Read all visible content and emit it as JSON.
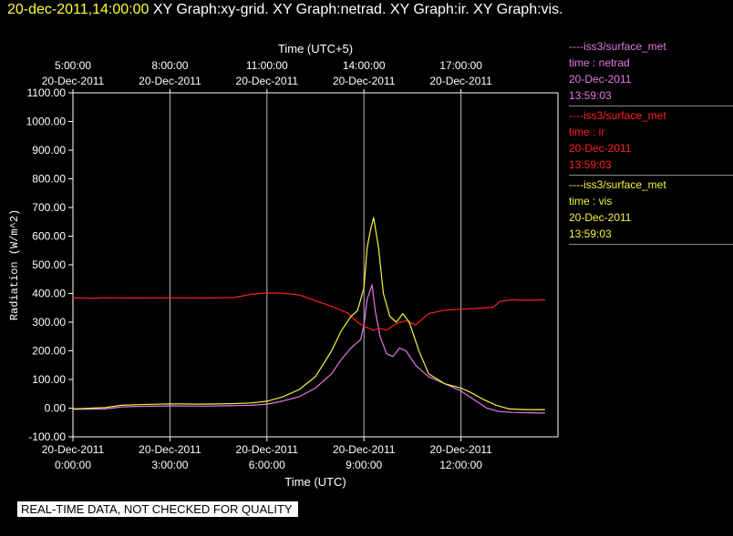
{
  "header": {
    "timestamp": "20-dec-2011,14:00:00",
    "graphs": "XY Graph:xy-grid.  XY Graph:netrad.  XY Graph:ir.  XY Graph:vis."
  },
  "legend": [
    {
      "source": "----iss3/surface_met",
      "label": "time : netrad",
      "date": "20-Dec-2011",
      "time": "13:59:03",
      "color": "#e27ae2"
    },
    {
      "source": "----iss3/surface_met",
      "label": "time : ir",
      "date": "20-Dec-2011",
      "time": "13:59:03",
      "color": "#ff2020"
    },
    {
      "source": "----iss3/surface_met",
      "label": "time : vis",
      "date": "20-Dec-2011",
      "time": "13:59:03",
      "color": "#f5f53a"
    }
  ],
  "disclaimer": "REAL-TIME DATA, NOT CHECKED FOR QUALITY",
  "chart_data": {
    "type": "line",
    "xlabel": "Time (UTC)",
    "x2label": "Time (UTC+5)",
    "ylabel": "Radiation (W/m^2)",
    "xlim": [
      0,
      15
    ],
    "ylim": [
      -100,
      1100
    ],
    "grid": "vertical",
    "yticks": [
      "-100.00",
      "0.00",
      "100.00",
      "200.00",
      "300.00",
      "400.00",
      "500.00",
      "600.00",
      "700.00",
      "800.00",
      "900.00",
      "1000.00",
      "1100.00"
    ],
    "xticks_bottom": [
      {
        "x": 0,
        "date": "20-Dec-2011",
        "time": "0:00:00"
      },
      {
        "x": 3,
        "date": "20-Dec-2011",
        "time": "3:00:00"
      },
      {
        "x": 6,
        "date": "20-Dec-2011",
        "time": "6:00:00"
      },
      {
        "x": 9,
        "date": "20-Dec-2011",
        "time": "9:00:00"
      },
      {
        "x": 12,
        "date": "20-Dec-2011",
        "time": "12:00:00"
      }
    ],
    "xticks_top": [
      {
        "x": 0,
        "time": "5:00:00",
        "date": "20-Dec-2011"
      },
      {
        "x": 3,
        "time": "8:00:00",
        "date": "20-Dec-2011"
      },
      {
        "x": 6,
        "time": "11:00:00",
        "date": "20-Dec-2011"
      },
      {
        "x": 9,
        "time": "14:00:00",
        "date": "20-Dec-2011"
      },
      {
        "x": 12,
        "time": "17:00:00",
        "date": "20-Dec-2011"
      }
    ],
    "series": [
      {
        "name": "netrad",
        "color": "#e27ae2",
        "points": [
          [
            0,
            -4
          ],
          [
            1,
            -3
          ],
          [
            1.5,
            4
          ],
          [
            2,
            6
          ],
          [
            3,
            8
          ],
          [
            4,
            7
          ],
          [
            5,
            9
          ],
          [
            5.5,
            10
          ],
          [
            6,
            14
          ],
          [
            6.5,
            25
          ],
          [
            7,
            40
          ],
          [
            7.5,
            70
          ],
          [
            8,
            120
          ],
          [
            8.3,
            170
          ],
          [
            8.6,
            210
          ],
          [
            8.9,
            240
          ],
          [
            9.0,
            290
          ],
          [
            9.1,
            380
          ],
          [
            9.25,
            430
          ],
          [
            9.35,
            340
          ],
          [
            9.5,
            250
          ],
          [
            9.7,
            190
          ],
          [
            9.9,
            180
          ],
          [
            10.1,
            210
          ],
          [
            10.3,
            200
          ],
          [
            10.6,
            150
          ],
          [
            11,
            110
          ],
          [
            11.5,
            85
          ],
          [
            12,
            60
          ],
          [
            12.4,
            30
          ],
          [
            12.8,
            0
          ],
          [
            13.2,
            -12
          ],
          [
            13.6,
            -15
          ],
          [
            14.0,
            -16
          ],
          [
            14.4,
            -17
          ],
          [
            14.6,
            -17
          ]
        ]
      },
      {
        "name": "ir",
        "color": "#ff2020",
        "points": [
          [
            0,
            385
          ],
          [
            0.5,
            383
          ],
          [
            1,
            385
          ],
          [
            2,
            384
          ],
          [
            3,
            385
          ],
          [
            4,
            384
          ],
          [
            5,
            386
          ],
          [
            5.5,
            397
          ],
          [
            6,
            402
          ],
          [
            6.5,
            401
          ],
          [
            7,
            395
          ],
          [
            7.5,
            375
          ],
          [
            8,
            355
          ],
          [
            8.5,
            332
          ],
          [
            8.8,
            300
          ],
          [
            9.0,
            285
          ],
          [
            9.3,
            272
          ],
          [
            9.5,
            278
          ],
          [
            9.7,
            272
          ],
          [
            10,
            295
          ],
          [
            10.3,
            305
          ],
          [
            10.6,
            290
          ],
          [
            11,
            330
          ],
          [
            11.5,
            342
          ],
          [
            12,
            345
          ],
          [
            12.5,
            348
          ],
          [
            13,
            352
          ],
          [
            13.2,
            372
          ],
          [
            13.6,
            378
          ],
          [
            14,
            376
          ],
          [
            14.6,
            378
          ]
        ]
      },
      {
        "name": "vis",
        "color": "#f5f53a",
        "points": [
          [
            0,
            -3
          ],
          [
            1,
            2
          ],
          [
            1.5,
            10
          ],
          [
            2,
            12
          ],
          [
            3,
            15
          ],
          [
            4,
            14
          ],
          [
            5,
            16
          ],
          [
            5.5,
            18
          ],
          [
            6,
            24
          ],
          [
            6.5,
            40
          ],
          [
            7,
            65
          ],
          [
            7.5,
            110
          ],
          [
            8,
            200
          ],
          [
            8.3,
            270
          ],
          [
            8.6,
            320
          ],
          [
            8.8,
            340
          ],
          [
            9.0,
            420
          ],
          [
            9.1,
            560
          ],
          [
            9.2,
            620
          ],
          [
            9.3,
            665
          ],
          [
            9.45,
            560
          ],
          [
            9.6,
            400
          ],
          [
            9.8,
            320
          ],
          [
            10.0,
            300
          ],
          [
            10.2,
            330
          ],
          [
            10.4,
            300
          ],
          [
            10.7,
            200
          ],
          [
            11,
            120
          ],
          [
            11.5,
            85
          ],
          [
            12,
            70
          ],
          [
            12.3,
            55
          ],
          [
            12.7,
            30
          ],
          [
            13.1,
            10
          ],
          [
            13.5,
            -3
          ],
          [
            14,
            -5
          ],
          [
            14.6,
            -5
          ]
        ]
      }
    ]
  }
}
